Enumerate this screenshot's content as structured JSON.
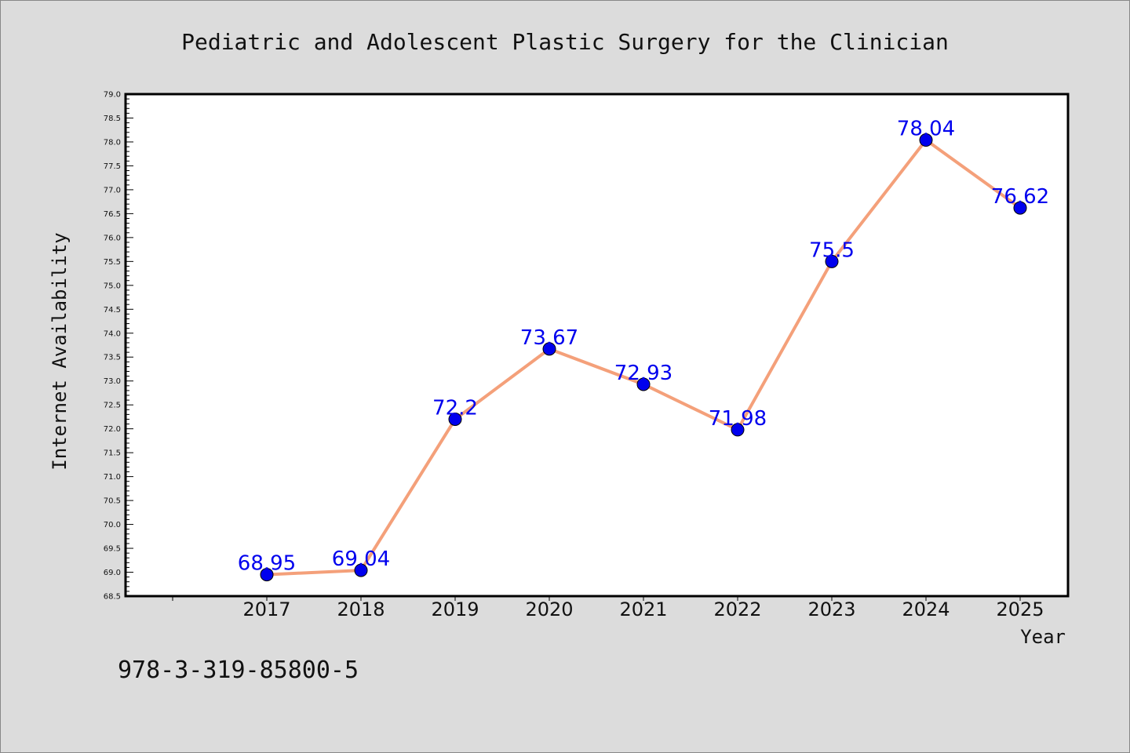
{
  "chart_data": {
    "type": "line",
    "title": "Pediatric and Adolescent Plastic Surgery for the Clinician",
    "xlabel": "Year",
    "ylabel": "Internet Availability",
    "categories": [
      "2017",
      "2018",
      "2019",
      "2020",
      "2021",
      "2022",
      "2023",
      "2024",
      "2025"
    ],
    "series": [
      {
        "values": [
          68.95,
          69.04,
          72.2,
          73.67,
          72.93,
          71.98,
          75.5,
          78.04,
          76.62
        ],
        "data_labels": [
          "68.95",
          "69.04",
          "72.2",
          "73.67",
          "72.93",
          "71.98",
          "75.5",
          "78.04",
          "76.62"
        ],
        "line_color": "#f4a07a",
        "marker_color": "#0000ee"
      }
    ],
    "ylim": [
      68.5,
      79.0
    ],
    "yticks": [
      "68.5",
      "69.0",
      "69.5",
      "70.0",
      "70.5",
      "71.0",
      "71.5",
      "72.0",
      "72.5",
      "73.0",
      "73.5",
      "74.0",
      "74.5",
      "75.0",
      "75.5",
      "76.0",
      "76.5",
      "77.0",
      "77.5",
      "78.0",
      "78.5",
      "79.0"
    ],
    "grid": false,
    "legend": "none"
  },
  "footnote": "978-3-319-85800-5",
  "colors": {
    "background": "#dcdcdc",
    "plot_background": "#ffffff",
    "label_color": "#0000ee"
  }
}
